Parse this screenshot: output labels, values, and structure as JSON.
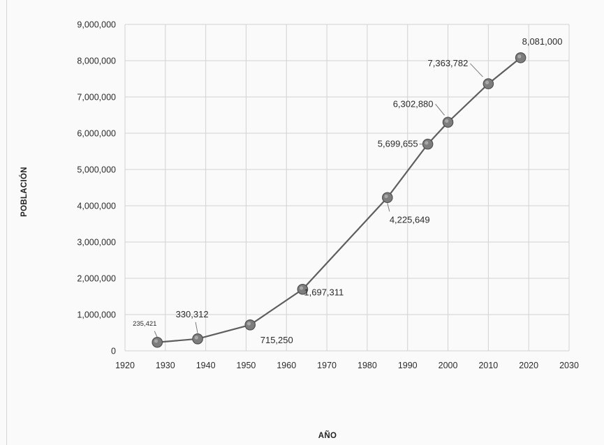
{
  "chart_data": {
    "type": "line",
    "title": "",
    "xlabel": "AÑO",
    "ylabel": "POBLACIÓN",
    "xlim": [
      1920,
      2030
    ],
    "ylim": [
      0,
      9000000
    ],
    "x_ticks": [
      "1920",
      "1930",
      "1940",
      "1950",
      "1960",
      "1970",
      "1980",
      "1990",
      "2000",
      "2010",
      "2020",
      "2030"
    ],
    "y_ticks": [
      "0",
      "1,000,000",
      "2,000,000",
      "3,000,000",
      "4,000,000",
      "5,000,000",
      "6,000,000",
      "7,000,000",
      "8,000,000",
      "9,000,000"
    ],
    "grid": true,
    "legend": "none",
    "series": [
      {
        "x": [
          1928,
          1938,
          1951,
          1964,
          1985,
          1995,
          2000,
          2010,
          2018
        ],
        "values": [
          235421,
          330312,
          715250,
          1697311,
          4225649,
          5699655,
          6302880,
          7363782,
          8081000
        ],
        "labels": [
          "235,421",
          "330,312",
          "715,250",
          "1,697,311",
          "4,225,649",
          "5,699,655",
          "6,302,880",
          "7,363,782",
          "8,081,000"
        ],
        "color": "#5e5e5e"
      }
    ]
  }
}
